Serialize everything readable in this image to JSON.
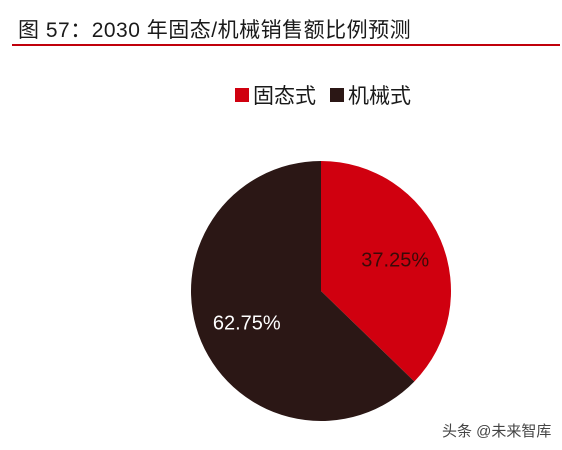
{
  "figure": {
    "title": "图 57：2030 年固态/机械销售额比例预测"
  },
  "legend": {
    "items": [
      {
        "label": "固态式",
        "color": "#d0000f"
      },
      {
        "label": "机械式",
        "color": "#2b1715"
      }
    ]
  },
  "chart_data": {
    "type": "pie",
    "title": "图 57：2030 年固态/机械销售额比例预测",
    "legend_position": "top",
    "slices": [
      {
        "label": "固态式",
        "value": 37.25,
        "display": "37.25%",
        "color": "#d0000f",
        "label_color": "#3a0a08"
      },
      {
        "label": "机械式",
        "value": 62.75,
        "display": "62.75%",
        "color": "#2b1715",
        "label_color": "#ffffff"
      }
    ]
  },
  "watermark": {
    "text": "头条 @未来智库"
  }
}
